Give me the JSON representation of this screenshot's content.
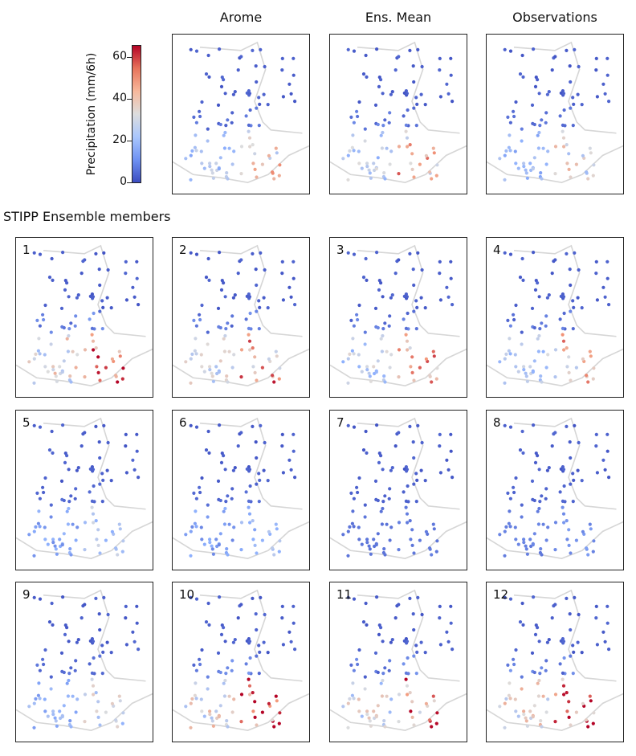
{
  "chart_data": {
    "type": "scatter",
    "description_units": "Precipitation (mm/6h)",
    "top_panels": [
      {
        "title": "Arome",
        "south_intensity": 0.65
      },
      {
        "title": "Ens. Mean",
        "south_intensity": 0.72
      },
      {
        "title": "Observations",
        "south_intensity": 0.55
      }
    ],
    "section_title": "STIPP Ensemble members",
    "members": [
      {
        "label": "1",
        "south_intensity": 1.0
      },
      {
        "label": "2",
        "south_intensity": 0.85
      },
      {
        "label": "3",
        "south_intensity": 0.75
      },
      {
        "label": "4",
        "south_intensity": 0.7
      },
      {
        "label": "5",
        "south_intensity": 0.35
      },
      {
        "label": "6",
        "south_intensity": 0.3
      },
      {
        "label": "7",
        "south_intensity": 0.05
      },
      {
        "label": "8",
        "south_intensity": 0.12
      },
      {
        "label": "9",
        "south_intensity": 0.45
      },
      {
        "label": "10",
        "south_intensity": 1.0
      },
      {
        "label": "11",
        "south_intensity": 0.9
      },
      {
        "label": "12",
        "south_intensity": 1.0
      }
    ],
    "colorbar": {
      "label": "Precipitation (mm/6h)",
      "range": [
        0,
        66
      ],
      "ticks": [
        "0",
        "20",
        "40",
        "60"
      ],
      "colormap": "coolwarm"
    }
  }
}
